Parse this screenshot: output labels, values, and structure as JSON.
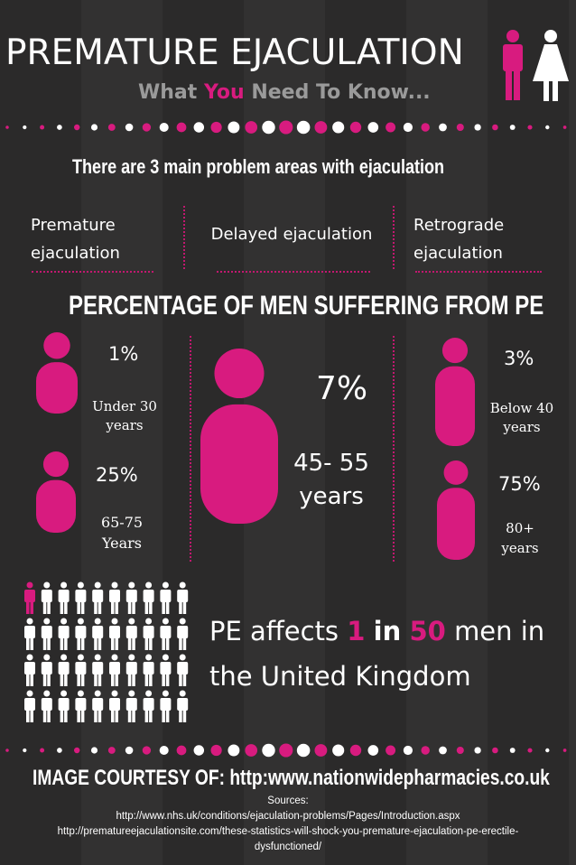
{
  "header": {
    "title": "PREMATURE EJACULATION",
    "subtitle_parts": [
      "What",
      "You",
      "Need To Know..."
    ]
  },
  "problem_areas": {
    "heading": "There are 3 main problem areas with ejaculation",
    "items": [
      "Premature ejaculation",
      "Delayed ejaculation",
      "Retrograde ejaculation"
    ]
  },
  "percentages": {
    "heading": "PERCENTAGE OF MEN SUFFERING FROM PE",
    "groups": [
      {
        "value": "1%",
        "label": "Under 30 years"
      },
      {
        "value": "25%",
        "label": "65-75 Years"
      },
      {
        "value": "7%",
        "label": "45- 55 years"
      },
      {
        "value": "3%",
        "label": "Below 40 years"
      },
      {
        "value": "75%",
        "label": "80+ years"
      }
    ]
  },
  "stat": {
    "parts": [
      "PE affects",
      "1",
      "in",
      "50",
      "men in the United Kingdom"
    ]
  },
  "footer": {
    "courtesy": "IMAGE COURTESY OF: http:www.nationwidepharmacies.co.uk",
    "sources_label": "Sources:",
    "sources": [
      "http://www.nhs.uk/conditions/ejaculation-problems/Pages/Introduction.aspx",
      "http://prematureejaculationsite.com/these-statistics-will-shock-you-premature-ejaculation-pe-erectile-dysfunctioned/"
    ]
  }
}
